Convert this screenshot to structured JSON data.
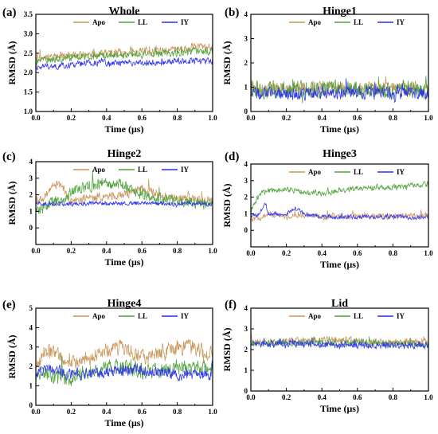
{
  "colors": {
    "Apo": "#c8955a",
    "LL": "#4ea03a",
    "IY": "#2a2ef0"
  },
  "chart_data": [
    {
      "type": "line",
      "panel": "(a)",
      "title": "Whole",
      "xlabel": "Time (μs)",
      "ylabel": "RMSD (Å)",
      "xlim": [
        0,
        1.0
      ],
      "ylim": [
        1.0,
        3.5
      ],
      "xticks": [
        "0.0",
        "0.2",
        "0.4",
        "0.6",
        "0.8",
        "1.0"
      ],
      "yticks": [
        "1.0",
        "1.5",
        "2.0",
        "2.5",
        "3.0",
        "3.5"
      ],
      "legend": "top-right",
      "series": [
        {
          "name": "Apo",
          "x": [
            0,
            0.1,
            0.2,
            0.3,
            0.4,
            0.5,
            0.6,
            0.7,
            0.8,
            0.9,
            1.0
          ],
          "values": [
            2.35,
            2.4,
            2.45,
            2.45,
            2.5,
            2.5,
            2.55,
            2.55,
            2.6,
            2.65,
            2.65
          ],
          "noise": 0.09
        },
        {
          "name": "LL",
          "x": [
            0,
            0.1,
            0.2,
            0.3,
            0.4,
            0.5,
            0.6,
            0.7,
            0.8,
            0.9,
            1.0
          ],
          "values": [
            2.3,
            2.35,
            2.4,
            2.4,
            2.45,
            2.45,
            2.5,
            2.5,
            2.5,
            2.55,
            2.55
          ],
          "noise": 0.08
        },
        {
          "name": "IY",
          "x": [
            0,
            0.1,
            0.2,
            0.3,
            0.4,
            0.5,
            0.6,
            0.7,
            0.8,
            0.9,
            1.0
          ],
          "values": [
            2.15,
            2.15,
            2.2,
            2.25,
            2.25,
            2.25,
            2.25,
            2.25,
            2.3,
            2.3,
            2.3
          ],
          "noise": 0.07
        }
      ]
    },
    {
      "type": "line",
      "panel": "(b)",
      "title": "Hinge1",
      "xlabel": "Time (μs)",
      "ylabel": "RMSD (Å)",
      "xlim": [
        0,
        1.0
      ],
      "ylim": [
        0,
        4
      ],
      "xticks": [
        "0.0",
        "0.2",
        "0.4",
        "0.6",
        "0.8",
        "1.0"
      ],
      "yticks": [
        "0",
        "1",
        "2",
        "3",
        "4"
      ],
      "legend": "top-right",
      "series": [
        {
          "name": "Apo",
          "x": [
            0,
            0.2,
            0.4,
            0.6,
            0.8,
            1.0
          ],
          "values": [
            0.95,
            0.95,
            0.95,
            0.95,
            0.95,
            0.95
          ],
          "noise": 0.25
        },
        {
          "name": "LL",
          "x": [
            0,
            0.2,
            0.4,
            0.6,
            0.8,
            1.0
          ],
          "values": [
            0.9,
            0.9,
            0.9,
            0.9,
            0.9,
            0.9
          ],
          "noise": 0.3
        },
        {
          "name": "IY",
          "x": [
            0,
            0.2,
            0.4,
            0.6,
            0.8,
            1.0
          ],
          "values": [
            0.75,
            0.75,
            0.75,
            0.75,
            0.75,
            0.75
          ],
          "noise": 0.22
        }
      ]
    },
    {
      "type": "line",
      "panel": "(c)",
      "title": "Hinge2",
      "xlabel": "Time (μs)",
      "ylabel": "RMSD (Å)",
      "xlim": [
        0,
        1.0
      ],
      "ylim": [
        -1,
        4
      ],
      "xticks": [
        "0.0",
        "0.2",
        "0.4",
        "0.6",
        "0.8",
        "1.0"
      ],
      "yticks": [
        "0",
        "1",
        "2",
        "3",
        "4"
      ],
      "legend": "top-right",
      "series": [
        {
          "name": "Apo",
          "x": [
            0,
            0.05,
            0.1,
            0.15,
            0.2,
            0.3,
            0.4,
            0.5,
            0.6,
            0.7,
            0.8,
            0.9,
            1.0
          ],
          "values": [
            1.6,
            1.8,
            2.6,
            2.5,
            1.6,
            1.8,
            1.9,
            2.0,
            2.4,
            2.0,
            1.8,
            1.7,
            1.7
          ],
          "noise": 0.22
        },
        {
          "name": "LL",
          "x": [
            0,
            0.05,
            0.1,
            0.15,
            0.2,
            0.3,
            0.4,
            0.5,
            0.6,
            0.7,
            0.8,
            0.9,
            1.0
          ],
          "values": [
            1.0,
            1.2,
            1.6,
            1.5,
            2.2,
            2.5,
            2.7,
            2.6,
            2.0,
            1.7,
            1.6,
            1.5,
            1.5
          ],
          "noise": 0.3
        },
        {
          "name": "IY",
          "x": [
            0,
            0.2,
            0.4,
            0.6,
            0.8,
            1.0
          ],
          "values": [
            1.45,
            1.45,
            1.5,
            1.5,
            1.45,
            1.45
          ],
          "noise": 0.12
        }
      ]
    },
    {
      "type": "line",
      "panel": "(d)",
      "title": "Hinge3",
      "xlabel": "Time (μs)",
      "ylabel": "RMSD (Å)",
      "xlim": [
        0,
        1.0
      ],
      "ylim": [
        -1,
        4
      ],
      "xticks": [
        "0.0",
        "0.2",
        "0.4",
        "0.6",
        "0.8",
        "1.0"
      ],
      "yticks": [
        "0",
        "1",
        "2",
        "3",
        "4"
      ],
      "legend": "top-right",
      "series": [
        {
          "name": "Apo",
          "x": [
            0,
            0.05,
            0.1,
            0.2,
            0.3,
            0.4,
            0.5,
            0.6,
            0.7,
            0.8,
            0.9,
            1.0
          ],
          "values": [
            0.7,
            0.7,
            1.0,
            0.8,
            0.9,
            0.8,
            0.85,
            0.85,
            0.9,
            0.85,
            0.9,
            0.9
          ],
          "noise": 0.15
        },
        {
          "name": "LL",
          "x": [
            0,
            0.05,
            0.1,
            0.2,
            0.3,
            0.4,
            0.5,
            0.6,
            0.7,
            0.8,
            0.9,
            1.0
          ],
          "values": [
            1.2,
            2.2,
            2.4,
            2.5,
            2.3,
            2.2,
            2.4,
            2.5,
            2.6,
            2.6,
            2.7,
            2.8
          ],
          "noise": 0.15
        },
        {
          "name": "IY",
          "x": [
            0,
            0.05,
            0.08,
            0.1,
            0.2,
            0.25,
            0.3,
            0.4,
            0.5,
            0.6,
            0.7,
            0.8,
            0.9,
            1.0
          ],
          "values": [
            0.8,
            1.0,
            1.6,
            1.0,
            1.0,
            1.3,
            1.0,
            0.8,
            0.8,
            0.8,
            0.8,
            0.8,
            0.8,
            0.8
          ],
          "noise": 0.12
        }
      ]
    },
    {
      "type": "line",
      "panel": "(e)",
      "title": "Hinge4",
      "xlabel": "Time (μs)",
      "ylabel": "RMSD (Å)",
      "xlim": [
        0,
        1.0
      ],
      "ylim": [
        0,
        5
      ],
      "xticks": [
        "0.0",
        "0.2",
        "0.4",
        "0.6",
        "0.8",
        "1.0"
      ],
      "yticks": [
        "0",
        "1",
        "2",
        "3",
        "4",
        "5"
      ],
      "legend": "top-right",
      "series": [
        {
          "name": "Apo",
          "x": [
            0,
            0.05,
            0.1,
            0.2,
            0.3,
            0.4,
            0.5,
            0.6,
            0.7,
            0.8,
            0.9,
            1.0
          ],
          "values": [
            1.8,
            2.8,
            2.7,
            2.3,
            2.4,
            2.9,
            3.0,
            2.4,
            2.6,
            3.0,
            2.9,
            2.6
          ],
          "noise": 0.35
        },
        {
          "name": "LL",
          "x": [
            0,
            0.05,
            0.1,
            0.2,
            0.3,
            0.4,
            0.5,
            0.6,
            0.7,
            0.8,
            0.9,
            1.0
          ],
          "values": [
            1.3,
            1.6,
            1.5,
            1.4,
            1.8,
            1.9,
            2.0,
            1.7,
            1.8,
            2.0,
            1.9,
            1.9
          ],
          "noise": 0.35
        },
        {
          "name": "IY",
          "x": [
            0,
            0.05,
            0.1,
            0.2,
            0.3,
            0.4,
            0.5,
            0.6,
            0.7,
            0.8,
            0.9,
            1.0
          ],
          "values": [
            1.7,
            1.8,
            1.8,
            1.6,
            1.6,
            1.7,
            1.8,
            1.8,
            1.7,
            1.6,
            1.6,
            1.6
          ],
          "noise": 0.25
        }
      ]
    },
    {
      "type": "line",
      "panel": "(f)",
      "title": "Lid",
      "xlabel": "Time (μs)",
      "ylabel": "RMSD (Å)",
      "xlim": [
        0,
        1.0
      ],
      "ylim": [
        0,
        4
      ],
      "xticks": [
        "0.0",
        "0.2",
        "0.4",
        "0.6",
        "0.8",
        "1.0"
      ],
      "yticks": [
        "0",
        "1",
        "2",
        "3",
        "4"
      ],
      "legend": "top-right",
      "series": [
        {
          "name": "Apo",
          "x": [
            0,
            0.2,
            0.4,
            0.6,
            0.8,
            1.0
          ],
          "values": [
            2.35,
            2.4,
            2.5,
            2.4,
            2.35,
            2.4
          ],
          "noise": 0.15
        },
        {
          "name": "LL",
          "x": [
            0,
            0.2,
            0.4,
            0.6,
            0.8,
            1.0
          ],
          "values": [
            2.3,
            2.35,
            2.3,
            2.35,
            2.3,
            2.25
          ],
          "noise": 0.15
        },
        {
          "name": "IY",
          "x": [
            0,
            0.2,
            0.4,
            0.6,
            0.8,
            1.0
          ],
          "values": [
            2.25,
            2.3,
            2.25,
            2.2,
            2.2,
            2.2
          ],
          "noise": 0.15
        }
      ]
    }
  ]
}
